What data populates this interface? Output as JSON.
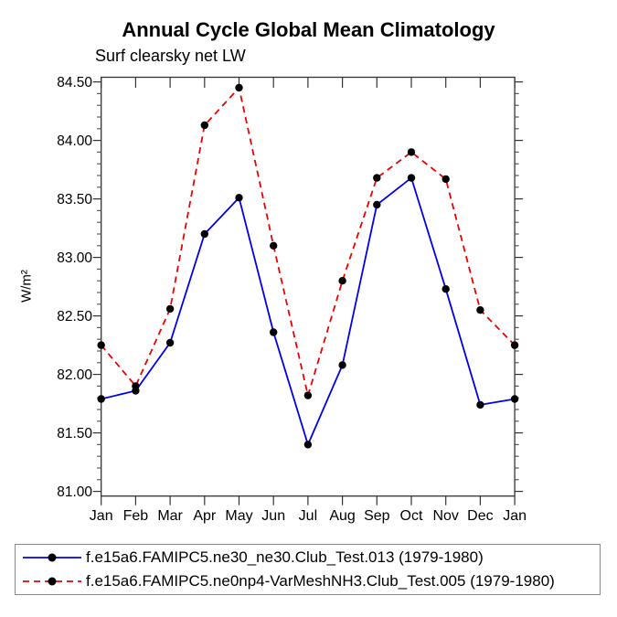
{
  "chart_data": {
    "type": "line",
    "title": "Annual Cycle Global Mean Climatology",
    "subtitle": "Surf clearsky net LW",
    "ylabel": "W/m²",
    "xlabel": "",
    "categories": [
      "Jan",
      "Feb",
      "Mar",
      "Apr",
      "May",
      "Jun",
      "Jul",
      "Aug",
      "Sep",
      "Oct",
      "Nov",
      "Dec",
      "Jan"
    ],
    "ylim": [
      80.96,
      84.54
    ],
    "ytick_start": 81.0,
    "ytick_end": 84.5,
    "ytick_step": 0.5,
    "yminor_step": 0.1,
    "ytick_label_format": "2dp",
    "grid": false,
    "legend_position": "bottom-outside-boxed",
    "series": [
      {
        "name": "f.e15a6.FAMIPC5.ne30_ne30.Club_Test.013 (1979-1980)",
        "color": "#0000ee",
        "dash": "solid",
        "marker": "dot",
        "marker_color": "#000000",
        "values": [
          81.79,
          81.86,
          82.27,
          83.2,
          83.51,
          82.36,
          81.4,
          82.08,
          83.45,
          83.68,
          82.73,
          81.74,
          81.79
        ]
      },
      {
        "name": "f.e15a6.FAMIPC5.ne0np4-VarMeshNH3.Club_Test.005 (1979-1980)",
        "color": "#ee0000",
        "dash": "dashed",
        "marker": "dot",
        "marker_color": "#000000",
        "values": [
          82.25,
          81.9,
          82.56,
          84.13,
          84.45,
          83.1,
          81.82,
          82.8,
          83.68,
          83.9,
          83.67,
          82.55,
          82.25
        ]
      }
    ]
  },
  "colors": {
    "axis": "#333333",
    "minor_tick": "#555555",
    "background": "#ffffff",
    "legend_border": "#8a8a8a",
    "text": "#000000"
  }
}
